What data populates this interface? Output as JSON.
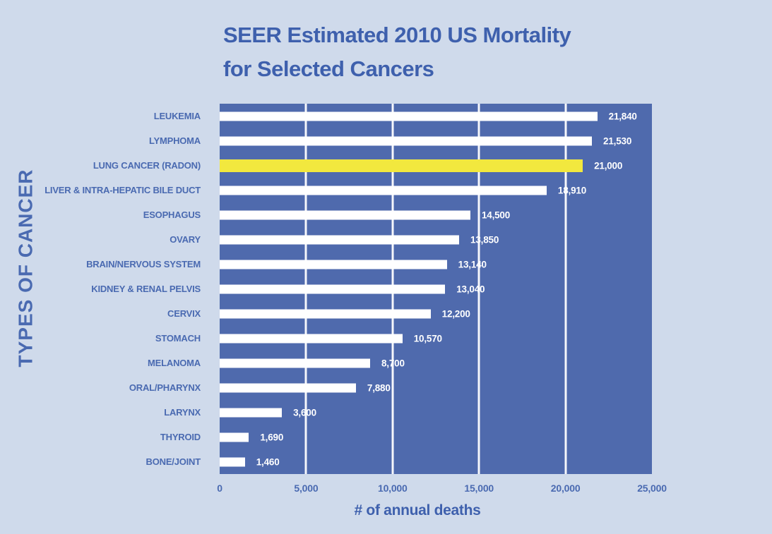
{
  "title": {
    "line1": "SEER Estimated 2010 US Mortality",
    "line2": "for Selected Cancers"
  },
  "chart_data": {
    "type": "bar",
    "orientation": "horizontal",
    "title": "SEER Estimated 2010 US Mortality for Selected Cancers",
    "xlabel": "# of annual deaths",
    "ylabel": "TYPES OF CANCER",
    "xlim": [
      0,
      25000
    ],
    "xticks": [
      "0",
      "5,000",
      "10,000",
      "15,000",
      "20,000",
      "25,000"
    ],
    "grid": "vertical white gridlines every 5,000, inside plot only",
    "legend": "none",
    "categories": [
      "LEUKEMIA",
      "LYMPHOMA",
      "LUNG CANCER (RADON)",
      "LIVER & INTRA-HEPATIC BILE DUCT",
      "ESOPHAGUS",
      "OVARY",
      "BRAIN/NERVOUS SYSTEM",
      "KIDNEY & RENAL PELVIS",
      "CERVIX",
      "STOMACH",
      "MELANOMA",
      "ORAL/PHARYNX",
      "LARYNX",
      "THYROID",
      "BONE/JOINT"
    ],
    "values": [
      21840,
      21530,
      21000,
      18910,
      14500,
      13850,
      13140,
      13040,
      12200,
      10570,
      8700,
      7880,
      3600,
      1690,
      1460
    ],
    "value_labels": [
      "21,840",
      "21,530",
      "21,000",
      "18,910",
      "14,500",
      "13,850",
      "13,140",
      "13,040",
      "12,200",
      "10,570",
      "8,700",
      "7,880",
      "3,600",
      "1,690",
      "1,460"
    ],
    "highlight_category": "LUNG CANCER (RADON)",
    "highlight_index": 2,
    "colors": {
      "background": "#cfdaeb",
      "plot_background": "#4f6aad",
      "bar": "#ffffff",
      "highlight_bar": "#f2e83e",
      "gridline": "#ffffff",
      "text_blue": "#4a6ab1",
      "title_blue": "#3e60ad",
      "value_text": "#ffffff"
    }
  }
}
